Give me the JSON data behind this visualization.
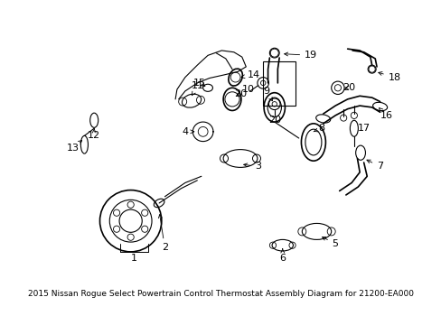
{
  "title": "2015 Nissan Rogue Select Powertrain Control Thermostat Assembly Diagram for 21200-EA000",
  "bg_color": "#ffffff",
  "fig_width": 4.89,
  "fig_height": 3.6,
  "dpi": 100,
  "font_size_label": 8,
  "font_size_title": 6.5,
  "line_color": "#000000"
}
